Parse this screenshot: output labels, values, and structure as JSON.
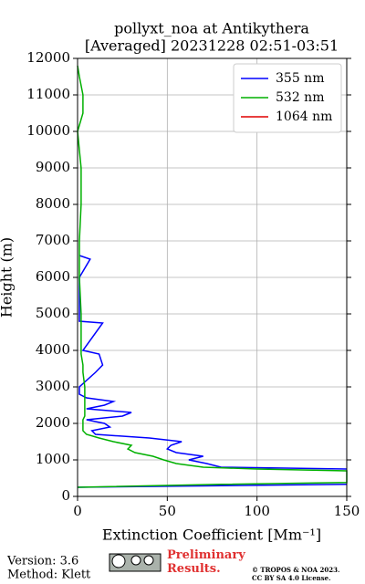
{
  "chart_data": {
    "type": "profile",
    "title": "pollyxt_noa at Antikythera",
    "subtitle": "[Averaged] 20231228 02:51-03:51",
    "xlabel": "Extinction Coefficient [Mm⁻¹]",
    "ylabel": "Height (m)",
    "y": [
      250,
      330,
      380,
      700,
      750,
      800,
      900,
      1000,
      1100,
      1200,
      1300,
      1400,
      1500,
      1600,
      1700,
      1800,
      1900,
      2000,
      2100,
      2200,
      2300,
      2400,
      2500,
      2600,
      2700,
      2800,
      3000,
      3400,
      3500,
      3600,
      3900,
      4000,
      4750,
      4800,
      5000,
      6000,
      6500,
      6600,
      7000,
      8000,
      9000,
      10000,
      10500,
      11000,
      11500,
      11800
    ],
    "series": [
      {
        "name": "355 nm",
        "color": "#0000ff",
        "values": [
          0,
          150,
          null,
          null,
          150,
          80,
          72,
          62,
          70,
          55,
          50,
          52,
          58,
          40,
          10,
          8,
          18,
          15,
          5,
          25,
          30,
          5,
          15,
          20,
          5,
          1,
          1,
          10,
          12,
          14,
          12,
          3,
          14,
          1,
          1,
          1,
          7,
          1,
          null,
          null,
          null,
          null,
          null,
          null,
          null,
          null
        ]
      },
      {
        "name": "532 nm",
        "color": "#00b000",
        "values": [
          0,
          80,
          150,
          150,
          100,
          70,
          55,
          48,
          42,
          32,
          28,
          30,
          20,
          12,
          5,
          3,
          3,
          3,
          3,
          4,
          4,
          4,
          4,
          4,
          4,
          4,
          4,
          3,
          3,
          3,
          2,
          2,
          2,
          2,
          2,
          1,
          1,
          1,
          1,
          2,
          2,
          0,
          3,
          3,
          1,
          0
        ]
      },
      {
        "name": "1064 nm",
        "color": "#e00000",
        "values": [
          null,
          null,
          null,
          null,
          null,
          null,
          null,
          null,
          null,
          null,
          null,
          null,
          null,
          null,
          null,
          null,
          null,
          null,
          null,
          null,
          null,
          null,
          null,
          null,
          null,
          null,
          null,
          null,
          null,
          null,
          null,
          null,
          null,
          null,
          null,
          null,
          null,
          null,
          null,
          null,
          null,
          null,
          null,
          null,
          null,
          null
        ]
      }
    ],
    "xlim": [
      0,
      150
    ],
    "xticks": [
      0,
      50,
      100,
      150
    ],
    "ylim": [
      0,
      12000
    ],
    "yticks": [
      0,
      1000,
      2000,
      3000,
      4000,
      5000,
      6000,
      7000,
      8000,
      9000,
      10000,
      11000,
      12000
    ],
    "grid": true,
    "legend": "upper right"
  },
  "footer": {
    "version": "Version: 3.6",
    "method": "Method: Klett",
    "note": "Preliminary Results.",
    "copyright": "© TROPOS & NOA 2023.",
    "license": "CC BY SA 4.0 License."
  }
}
